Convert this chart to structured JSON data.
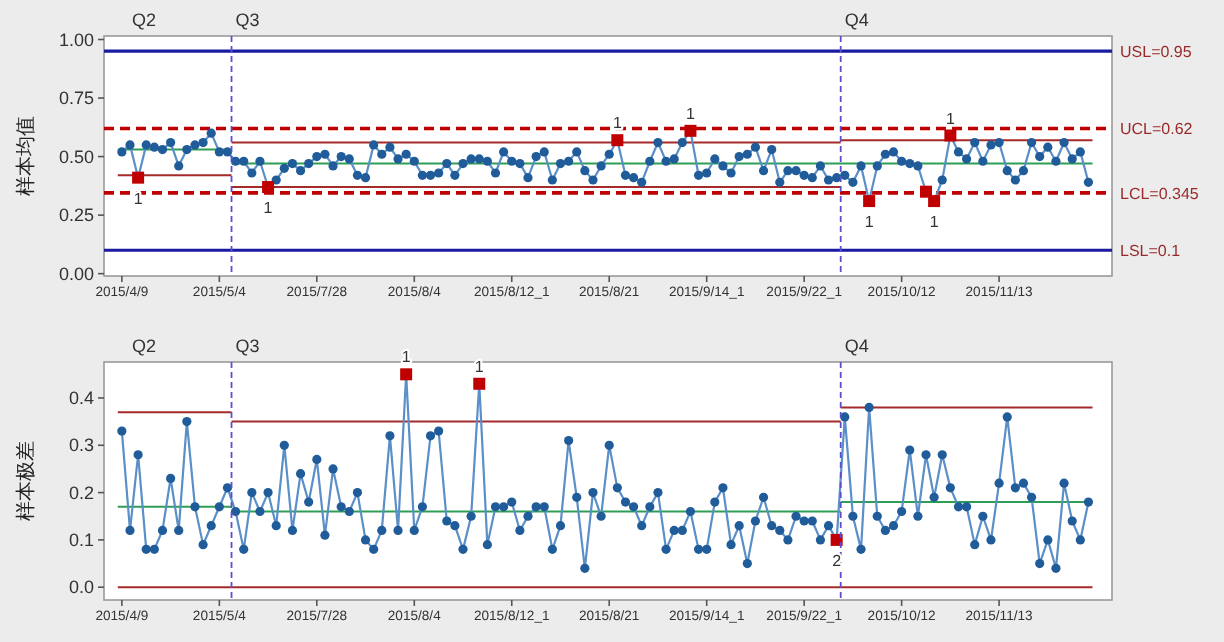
{
  "chart_data": [
    {
      "type": "line",
      "ylabel": "样本均值",
      "ylim": [
        -0.01,
        1.015
      ],
      "marker": "circle",
      "categories": [
        "2015/4/9",
        null,
        null,
        null,
        null,
        null,
        null,
        null,
        null,
        null,
        null,
        null,
        "2015/5/4",
        null,
        null,
        null,
        null,
        null,
        null,
        null,
        null,
        null,
        null,
        null,
        "2015/7/28",
        null,
        null,
        null,
        null,
        null,
        null,
        null,
        null,
        null,
        null,
        null,
        "2015/8/4",
        null,
        null,
        null,
        null,
        null,
        null,
        null,
        null,
        null,
        null,
        null,
        "2015/8/12_1",
        null,
        null,
        null,
        null,
        null,
        null,
        null,
        null,
        null,
        null,
        null,
        "2015/8/21",
        null,
        null,
        null,
        null,
        null,
        null,
        null,
        null,
        null,
        null,
        null,
        "2015/9/14_1",
        null,
        null,
        null,
        null,
        null,
        null,
        null,
        null,
        null,
        null,
        null,
        "2015/9/22_1",
        null,
        null,
        null,
        null,
        null,
        null,
        null,
        null,
        null,
        null,
        null,
        "2015/10/12",
        null,
        null,
        null,
        null,
        null,
        null,
        null,
        null,
        null,
        null,
        null,
        "2015/11/13",
        null,
        null,
        null,
        null,
        null,
        null,
        null,
        null,
        null,
        null,
        null
      ],
      "yticks": [
        {
          "value": 0,
          "label": "0.00"
        },
        {
          "value": 0.25,
          "label": "0.25"
        },
        {
          "value": 0.5,
          "label": "0.50"
        },
        {
          "value": 0.75,
          "label": "0.75"
        },
        {
          "value": 1,
          "label": "1.00"
        }
      ],
      "series": [
        {
          "type": "step",
          "marker": "none",
          "color": "#a52a2a",
          "values": [
            null,
            null,
            null,
            null,
            null,
            null,
            null,
            null,
            null,
            null,
            null,
            null,
            null,
            null,
            0.56,
            0.56,
            0.56,
            0.56,
            0.56,
            0.56,
            0.56,
            0.56,
            0.56,
            0.56,
            0.56,
            0.56,
            0.56,
            0.56,
            0.56,
            0.56,
            0.56,
            0.56,
            0.56,
            0.56,
            0.56,
            0.56,
            0.56,
            0.56,
            0.56,
            0.56,
            0.56,
            0.56,
            0.56,
            0.56,
            0.56,
            0.56,
            0.56,
            0.56,
            0.56,
            0.56,
            0.56,
            0.56,
            0.56,
            0.56,
            0.56,
            0.56,
            0.56,
            0.56,
            0.56,
            0.56,
            0.56,
            0.56,
            0.56,
            0.56,
            0.56,
            0.56,
            0.56,
            0.56,
            0.56,
            0.56,
            0.56,
            0.56,
            0.56,
            0.56,
            0.56,
            0.56,
            0.56,
            0.56,
            0.56,
            0.56,
            0.56,
            0.56,
            0.56,
            0.56,
            0.56,
            0.56,
            0.56,
            0.56,
            0.56,
            0.57,
            0.57,
            0.57,
            0.57,
            0.57,
            0.57,
            0.57,
            0.57,
            0.57,
            0.57,
            0.57,
            0.57,
            0.57,
            0.57,
            0.57,
            0.57,
            0.57,
            0.57,
            0.57,
            0.57,
            0.57,
            0.57,
            0.57,
            0.57,
            0.57,
            0.57,
            0.57,
            0.57,
            0.57,
            0.57,
            0.57
          ]
        },
        {
          "type": "step",
          "marker": "none",
          "color": "#2e9e57",
          "values": [
            0.53,
            0.53,
            0.53,
            0.53,
            0.53,
            0.53,
            0.53,
            0.53,
            0.53,
            0.53,
            0.53,
            0.53,
            0.53,
            0.53,
            0.47,
            0.47,
            0.47,
            0.47,
            0.47,
            0.47,
            0.47,
            0.47,
            0.47,
            0.47,
            0.47,
            0.47,
            0.47,
            0.47,
            0.47,
            0.47,
            0.47,
            0.47,
            0.47,
            0.47,
            0.47,
            0.47,
            0.47,
            0.47,
            0.47,
            0.47,
            0.47,
            0.47,
            0.47,
            0.47,
            0.47,
            0.47,
            0.47,
            0.47,
            0.47,
            0.47,
            0.47,
            0.47,
            0.47,
            0.47,
            0.47,
            0.47,
            0.47,
            0.47,
            0.47,
            0.47,
            0.47,
            0.47,
            0.47,
            0.47,
            0.47,
            0.47,
            0.47,
            0.47,
            0.47,
            0.47,
            0.47,
            0.47,
            0.47,
            0.47,
            0.47,
            0.47,
            0.47,
            0.47,
            0.47,
            0.47,
            0.47,
            0.47,
            0.47,
            0.47,
            0.47,
            0.47,
            0.47,
            0.47,
            0.47,
            0.47,
            0.47,
            0.47,
            0.47,
            0.47,
            0.47,
            0.47,
            0.47,
            0.47,
            0.47,
            0.47,
            0.47,
            0.47,
            0.47,
            0.47,
            0.47,
            0.47,
            0.47,
            0.47,
            0.47,
            0.47,
            0.47,
            0.47,
            0.47,
            0.47,
            0.47,
            0.47,
            0.47,
            0.47,
            0.47,
            0.47
          ]
        },
        {
          "type": "step",
          "marker": "none",
          "color": "#a52a2a",
          "values": [
            0.42,
            0.42,
            0.42,
            0.42,
            0.42,
            0.42,
            0.42,
            0.42,
            0.42,
            0.42,
            0.42,
            0.42,
            0.42,
            0.42,
            0.37,
            0.37,
            0.37,
            0.37,
            0.37,
            0.37,
            0.37,
            0.37,
            0.37,
            0.37,
            0.37,
            0.37,
            0.37,
            0.37,
            0.37,
            0.37,
            0.37,
            0.37,
            0.37,
            0.37,
            0.37,
            0.37,
            0.37,
            0.37,
            0.37,
            0.37,
            0.37,
            0.37,
            0.37,
            0.37,
            0.37,
            0.37,
            0.37,
            0.37,
            0.37,
            0.37,
            0.37,
            0.37,
            0.37,
            0.37,
            0.37,
            0.37,
            0.37,
            0.37,
            0.37,
            0.37,
            0.37,
            0.37,
            0.37,
            0.37,
            0.37,
            0.37,
            0.37,
            0.37,
            0.37,
            0.37,
            0.37,
            0.37,
            0.37,
            0.37,
            0.37,
            0.37,
            0.37,
            0.37,
            0.37,
            0.37,
            0.37,
            0.37,
            0.37,
            0.37,
            0.37,
            0.37,
            0.37,
            0.37,
            0.37,
            null,
            null,
            null,
            null,
            null,
            null,
            null,
            null,
            null,
            null,
            null,
            null,
            null,
            null,
            null,
            null,
            null,
            null,
            null,
            null,
            null,
            null,
            null,
            null,
            null,
            null,
            null,
            null,
            null,
            null,
            null
          ]
        },
        {
          "color": "#1f5c99",
          "values": [
            0.52,
            0.55,
            0.41,
            0.55,
            0.54,
            0.53,
            0.56,
            0.46,
            0.53,
            0.55,
            0.56,
            0.6,
            0.52,
            0.52,
            0.48,
            0.48,
            0.43,
            0.48,
            0.37,
            0.4,
            0.45,
            0.47,
            0.44,
            0.47,
            0.5,
            0.51,
            0.46,
            0.5,
            0.49,
            0.42,
            0.41,
            0.55,
            0.51,
            0.54,
            0.49,
            0.51,
            0.48,
            0.42,
            0.42,
            0.43,
            0.47,
            0.42,
            0.47,
            0.49,
            0.49,
            0.48,
            0.43,
            0.52,
            0.48,
            0.47,
            0.41,
            0.5,
            0.52,
            0.4,
            0.47,
            0.48,
            0.52,
            0.44,
            0.4,
            0.46,
            0.51,
            0.57,
            0.42,
            0.41,
            0.39,
            0.48,
            0.56,
            0.48,
            0.49,
            0.56,
            0.61,
            0.42,
            0.43,
            0.49,
            0.46,
            0.43,
            0.5,
            0.51,
            0.54,
            0.44,
            0.53,
            0.39,
            0.44,
            0.44,
            0.42,
            0.41,
            0.46,
            0.4,
            0.41,
            0.42,
            0.39,
            0.46,
            0.31,
            0.46,
            0.51,
            0.52,
            0.48,
            0.47,
            0.46,
            0.35,
            0.31,
            0.4,
            0.59,
            0.52,
            0.49,
            0.56,
            0.48,
            0.55,
            0.56,
            0.44,
            0.4,
            0.44,
            0.56,
            0.5,
            0.54,
            0.48,
            0.56,
            0.49,
            0.52,
            0.39
          ]
        },
        {
          "type": "scatter",
          "marker": "square",
          "color": "#c00000",
          "values": [
            null,
            null,
            0.41,
            null,
            null,
            null,
            null,
            null,
            null,
            null,
            null,
            null,
            null,
            null,
            null,
            null,
            null,
            null,
            0.37,
            null,
            null,
            null,
            null,
            null,
            null,
            null,
            null,
            null,
            null,
            null,
            null,
            null,
            null,
            null,
            null,
            null,
            null,
            null,
            null,
            null,
            null,
            null,
            null,
            null,
            null,
            null,
            null,
            null,
            null,
            null,
            null,
            null,
            null,
            null,
            null,
            null,
            null,
            null,
            null,
            null,
            null,
            0.57,
            null,
            null,
            null,
            null,
            null,
            null,
            null,
            null,
            0.61,
            null,
            null,
            null,
            null,
            null,
            null,
            null,
            null,
            null,
            null,
            null,
            null,
            null,
            null,
            null,
            null,
            null,
            null,
            null,
            null,
            null,
            0.31,
            null,
            null,
            null,
            null,
            null,
            null,
            0.35,
            0.31,
            null,
            0.59,
            null,
            null,
            null,
            null,
            null,
            null,
            null,
            null,
            null,
            null,
            null,
            null,
            null,
            null,
            null,
            null,
            null
          ]
        }
      ],
      "ref_lines": [
        {
          "axis": "y",
          "value": 0.95,
          "label": "USL=0.95",
          "color": "#1a1aa0",
          "line_style": "solid"
        },
        {
          "axis": "y",
          "value": 0.62,
          "label": "UCL=0.62",
          "color": "#c00000",
          "line_style": "dashed"
        },
        {
          "axis": "y",
          "value": 0.345,
          "label": "LCL=0.345",
          "color": "#c00000",
          "line_style": "dashed"
        },
        {
          "axis": "y",
          "value": 0.1,
          "label": "LSL=0.1",
          "color": "#1a1aa0",
          "line_style": "solid"
        }
      ],
      "annotations": [
        "Q2",
        "Q3",
        "Q4",
        {
          "text": "1",
          "y": 0.41
        },
        {
          "text": "1",
          "y": 0.37
        },
        {
          "text": "1",
          "y": 0.57
        },
        {
          "text": "1",
          "y": 0.61
        },
        {
          "text": "1",
          "y": 0.31
        },
        {
          "text": "1",
          "y": 0.31
        },
        {
          "text": "1",
          "y": 0.59
        }
      ]
    },
    {
      "type": "line",
      "ylabel": "样本极差",
      "ylim": [
        -0.027,
        0.476
      ],
      "marker": "circle",
      "categories": [
        "2015/4/9",
        null,
        null,
        null,
        null,
        null,
        null,
        null,
        null,
        null,
        null,
        null,
        "2015/5/4",
        null,
        null,
        null,
        null,
        null,
        null,
        null,
        null,
        null,
        null,
        null,
        "2015/7/28",
        null,
        null,
        null,
        null,
        null,
        null,
        null,
        null,
        null,
        null,
        null,
        "2015/8/4",
        null,
        null,
        null,
        null,
        null,
        null,
        null,
        null,
        null,
        null,
        null,
        "2015/8/12_1",
        null,
        null,
        null,
        null,
        null,
        null,
        null,
        null,
        null,
        null,
        null,
        "2015/8/21",
        null,
        null,
        null,
        null,
        null,
        null,
        null,
        null,
        null,
        null,
        null,
        "2015/9/14_1",
        null,
        null,
        null,
        null,
        null,
        null,
        null,
        null,
        null,
        null,
        null,
        "2015/9/22_1",
        null,
        null,
        null,
        null,
        null,
        null,
        null,
        null,
        null,
        null,
        null,
        "2015/10/12",
        null,
        null,
        null,
        null,
        null,
        null,
        null,
        null,
        null,
        null,
        null,
        "2015/11/13",
        null,
        null,
        null,
        null,
        null,
        null,
        null,
        null,
        null,
        null,
        null
      ],
      "yticks": [
        {
          "value": 0,
          "label": "0.0"
        },
        {
          "value": 0.1,
          "label": "0.1"
        },
        {
          "value": 0.2,
          "label": "0.2"
        },
        {
          "value": 0.3,
          "label": "0.3"
        },
        {
          "value": 0.4,
          "label": "0.4"
        }
      ],
      "series": [
        {
          "type": "step",
          "marker": "none",
          "color": "#a52a2a",
          "values": [
            0.37,
            0.37,
            0.37,
            0.37,
            0.37,
            0.37,
            0.37,
            0.37,
            0.37,
            0.37,
            0.37,
            0.37,
            0.37,
            0.37,
            0.35,
            0.35,
            0.35,
            0.35,
            0.35,
            0.35,
            0.35,
            0.35,
            0.35,
            0.35,
            0.35,
            0.35,
            0.35,
            0.35,
            0.35,
            0.35,
            0.35,
            0.35,
            0.35,
            0.35,
            0.35,
            0.35,
            0.35,
            0.35,
            0.35,
            0.35,
            0.35,
            0.35,
            0.35,
            0.35,
            0.35,
            0.35,
            0.35,
            0.35,
            0.35,
            0.35,
            0.35,
            0.35,
            0.35,
            0.35,
            0.35,
            0.35,
            0.35,
            0.35,
            0.35,
            0.35,
            0.35,
            0.35,
            0.35,
            0.35,
            0.35,
            0.35,
            0.35,
            0.35,
            0.35,
            0.35,
            0.35,
            0.35,
            0.35,
            0.35,
            0.35,
            0.35,
            0.35,
            0.35,
            0.35,
            0.35,
            0.35,
            0.35,
            0.35,
            0.35,
            0.35,
            0.35,
            0.35,
            0.35,
            0.35,
            0.38,
            0.38,
            0.38,
            0.38,
            0.38,
            0.38,
            0.38,
            0.38,
            0.38,
            0.38,
            0.38,
            0.38,
            0.38,
            0.38,
            0.38,
            0.38,
            0.38,
            0.38,
            0.38,
            0.38,
            0.38,
            0.38,
            0.38,
            0.38,
            0.38,
            0.38,
            0.38,
            0.38,
            0.38,
            0.38,
            0.38
          ]
        },
        {
          "type": "step",
          "marker": "none",
          "color": "#2e9e57",
          "values": [
            0.17,
            0.17,
            0.17,
            0.17,
            0.17,
            0.17,
            0.17,
            0.17,
            0.17,
            0.17,
            0.17,
            0.17,
            0.17,
            0.17,
            0.16,
            0.16,
            0.16,
            0.16,
            0.16,
            0.16,
            0.16,
            0.16,
            0.16,
            0.16,
            0.16,
            0.16,
            0.16,
            0.16,
            0.16,
            0.16,
            0.16,
            0.16,
            0.16,
            0.16,
            0.16,
            0.16,
            0.16,
            0.16,
            0.16,
            0.16,
            0.16,
            0.16,
            0.16,
            0.16,
            0.16,
            0.16,
            0.16,
            0.16,
            0.16,
            0.16,
            0.16,
            0.16,
            0.16,
            0.16,
            0.16,
            0.16,
            0.16,
            0.16,
            0.16,
            0.16,
            0.16,
            0.16,
            0.16,
            0.16,
            0.16,
            0.16,
            0.16,
            0.16,
            0.16,
            0.16,
            0.16,
            0.16,
            0.16,
            0.16,
            0.16,
            0.16,
            0.16,
            0.16,
            0.16,
            0.16,
            0.16,
            0.16,
            0.16,
            0.16,
            0.16,
            0.16,
            0.16,
            0.16,
            0.16,
            0.18,
            0.18,
            0.18,
            0.18,
            0.18,
            0.18,
            0.18,
            0.18,
            0.18,
            0.18,
            0.18,
            0.18,
            0.18,
            0.18,
            0.18,
            0.18,
            0.18,
            0.18,
            0.18,
            0.18,
            0.18,
            0.18,
            0.18,
            0.18,
            0.18,
            0.18,
            0.18,
            0.18,
            0.18,
            0.18,
            0.18
          ]
        },
        {
          "type": "step",
          "marker": "none",
          "color": "#a52a2a",
          "values": [
            0,
            0,
            0,
            0,
            0,
            0,
            0,
            0,
            0,
            0,
            0,
            0,
            0,
            0,
            0,
            0,
            0,
            0,
            0,
            0,
            0,
            0,
            0,
            0,
            0,
            0,
            0,
            0,
            0,
            0,
            0,
            0,
            0,
            0,
            0,
            0,
            0,
            0,
            0,
            0,
            0,
            0,
            0,
            0,
            0,
            0,
            0,
            0,
            0,
            0,
            0,
            0,
            0,
            0,
            0,
            0,
            0,
            0,
            0,
            0,
            0,
            0,
            0,
            0,
            0,
            0,
            0,
            0,
            0,
            0,
            0,
            0,
            0,
            0,
            0,
            0,
            0,
            0,
            0,
            0,
            0,
            0,
            0,
            0,
            0,
            0,
            0,
            0,
            0,
            0,
            0,
            0,
            0,
            0,
            0,
            0,
            0,
            0,
            0,
            0,
            0,
            0,
            0,
            0,
            0,
            0,
            0,
            0,
            0,
            0,
            0,
            0,
            0,
            0,
            0,
            0,
            0,
            0,
            0,
            0
          ]
        },
        {
          "color": "#1f5c99",
          "values": [
            0.33,
            0.12,
            0.28,
            0.08,
            0.08,
            0.12,
            0.23,
            0.12,
            0.35,
            0.17,
            0.09,
            0.13,
            0.17,
            0.21,
            0.16,
            0.08,
            0.2,
            0.16,
            0.2,
            0.13,
            0.3,
            0.12,
            0.24,
            0.18,
            0.27,
            0.11,
            0.25,
            0.17,
            0.16,
            0.2,
            0.1,
            0.08,
            0.12,
            0.32,
            0.12,
            0.45,
            0.12,
            0.17,
            0.32,
            0.33,
            0.14,
            0.13,
            0.08,
            0.15,
            0.43,
            0.09,
            0.17,
            0.17,
            0.18,
            0.12,
            0.15,
            0.17,
            0.17,
            0.08,
            0.13,
            0.31,
            0.19,
            0.04,
            0.2,
            0.15,
            0.3,
            0.21,
            0.18,
            0.17,
            0.13,
            0.17,
            0.2,
            0.08,
            0.12,
            0.12,
            0.16,
            0.08,
            0.08,
            0.18,
            0.21,
            0.09,
            0.13,
            0.05,
            0.14,
            0.19,
            0.13,
            0.12,
            0.1,
            0.15,
            0.14,
            0.14,
            0.1,
            0.13,
            0.1,
            0.36,
            0.15,
            0.08,
            0.38,
            0.15,
            0.12,
            0.13,
            0.16,
            0.29,
            0.15,
            0.28,
            0.19,
            0.28,
            0.21,
            0.17,
            0.17,
            0.09,
            0.15,
            0.1,
            0.22,
            0.36,
            0.21,
            0.22,
            0.19,
            0.05,
            0.1,
            0.04,
            0.22,
            0.14,
            0.1,
            0.18
          ]
        },
        {
          "type": "scatter",
          "marker": "square",
          "color": "#c00000",
          "values": [
            null,
            null,
            null,
            null,
            null,
            null,
            null,
            null,
            null,
            null,
            null,
            null,
            null,
            null,
            null,
            null,
            null,
            null,
            null,
            null,
            null,
            null,
            null,
            null,
            null,
            null,
            null,
            null,
            null,
            null,
            null,
            null,
            null,
            null,
            null,
            0.45,
            null,
            null,
            null,
            null,
            null,
            null,
            null,
            null,
            0.43,
            null,
            null,
            null,
            null,
            null,
            null,
            null,
            null,
            null,
            null,
            null,
            null,
            null,
            null,
            null,
            null,
            null,
            null,
            null,
            null,
            null,
            null,
            null,
            null,
            null,
            null,
            null,
            null,
            null,
            null,
            null,
            null,
            null,
            null,
            null,
            null,
            null,
            null,
            null,
            null,
            null,
            null,
            null,
            0.1,
            null,
            null,
            null,
            null,
            null,
            null,
            null,
            null,
            null,
            null,
            null,
            null,
            null,
            null,
            null,
            null,
            null,
            null,
            null,
            null,
            null,
            null,
            null,
            null,
            null,
            null,
            null,
            null,
            null,
            null,
            null
          ]
        }
      ],
      "annotations": [
        "Q2",
        "Q3",
        "Q4",
        {
          "text": "1",
          "y": 0.45
        },
        {
          "text": "1",
          "y": 0.43
        },
        {
          "text": "2",
          "y": 0.1
        }
      ]
    }
  ]
}
